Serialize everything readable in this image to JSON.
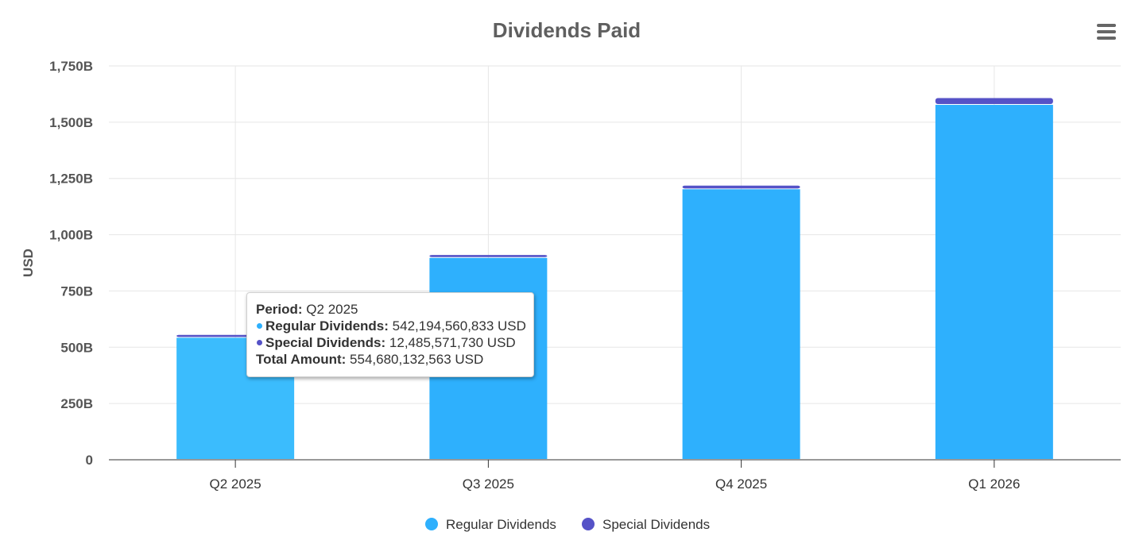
{
  "chart_data": {
    "type": "bar",
    "stacked": true,
    "title": "Dividends Paid",
    "ylabel": "USD",
    "xlabel": "",
    "categories": [
      "Q2 2025",
      "Q3 2025",
      "Q4 2025",
      "Q1 2026"
    ],
    "series": [
      {
        "name": "Regular Dividends",
        "color": "#2eb0fd",
        "values": [
          542194560833,
          897000000000,
          1202000000000,
          1577000000000
        ]
      },
      {
        "name": "Special Dividends",
        "color": "#5552c7",
        "values": [
          12485571730,
          13000000000,
          16000000000,
          30000000000
        ]
      }
    ],
    "ylim": [
      0,
      1750000000000
    ],
    "yticks": [
      "0",
      "250B",
      "500B",
      "750B",
      "1,000B",
      "1,250B",
      "1,500B",
      "1,750B"
    ],
    "grid": true,
    "legend": "bottom-center",
    "hovered_category_index": 0,
    "hover_color": "#3bbcfd"
  },
  "tooltip": {
    "period_label": "Period:",
    "period_value": "Q2 2025",
    "regular_label": "Regular Dividends:",
    "regular_value": "542,194,560,833 USD",
    "special_label": "Special Dividends:",
    "special_value": "12,485,571,730 USD",
    "total_label": "Total Amount:",
    "total_value": "554,680,132,563 USD"
  },
  "menu": {
    "icon": "hamburger-menu-icon"
  }
}
